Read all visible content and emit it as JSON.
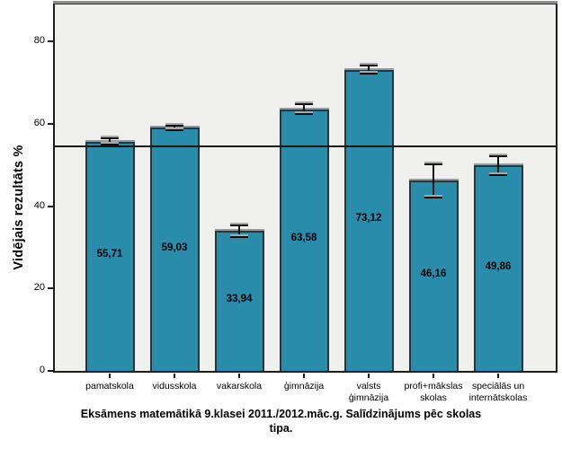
{
  "figure": {
    "title_display": "Eksāmens matemātikā 9.klasei 2011./2012.māc.g. Salīdzinājums pēc skolas\ntipa."
  },
  "chart_data": {
    "type": "bar",
    "title": "Eksāmens matemātikā 9.klasei 2011./2012.māc.g. Salīdzinājums pēc skolas tipa.",
    "ylabel": "Vidējais rezultāts %",
    "xlabel": "",
    "categories": [
      "pamatskola",
      "vidusskola",
      "vakarskola",
      "ģimnāzija",
      "valsts\nģimnāzija",
      "profi+mākslas\nskolas",
      "speciālās un\ninternātskolas"
    ],
    "values": [
      55.71,
      59.03,
      33.94,
      63.58,
      73.12,
      46.16,
      49.86
    ],
    "value_labels": [
      "55,71",
      "59,03",
      "33,94",
      "63,58",
      "73,12",
      "46,16",
      "49,86"
    ],
    "error_margins": [
      1.0,
      0.7,
      1.6,
      1.4,
      1.2,
      4.2,
      2.6
    ],
    "reference_line_value": 54.5,
    "yticks": [
      0,
      20,
      40,
      60,
      80
    ],
    "ylim": [
      0,
      89
    ],
    "grid": false,
    "legend": false,
    "decimal_separator": ",",
    "bar_color": "#2a8cab",
    "bar_border_color": "#1c3944",
    "plot_background": "#f0f0ee",
    "value_label_color": "#000000"
  }
}
